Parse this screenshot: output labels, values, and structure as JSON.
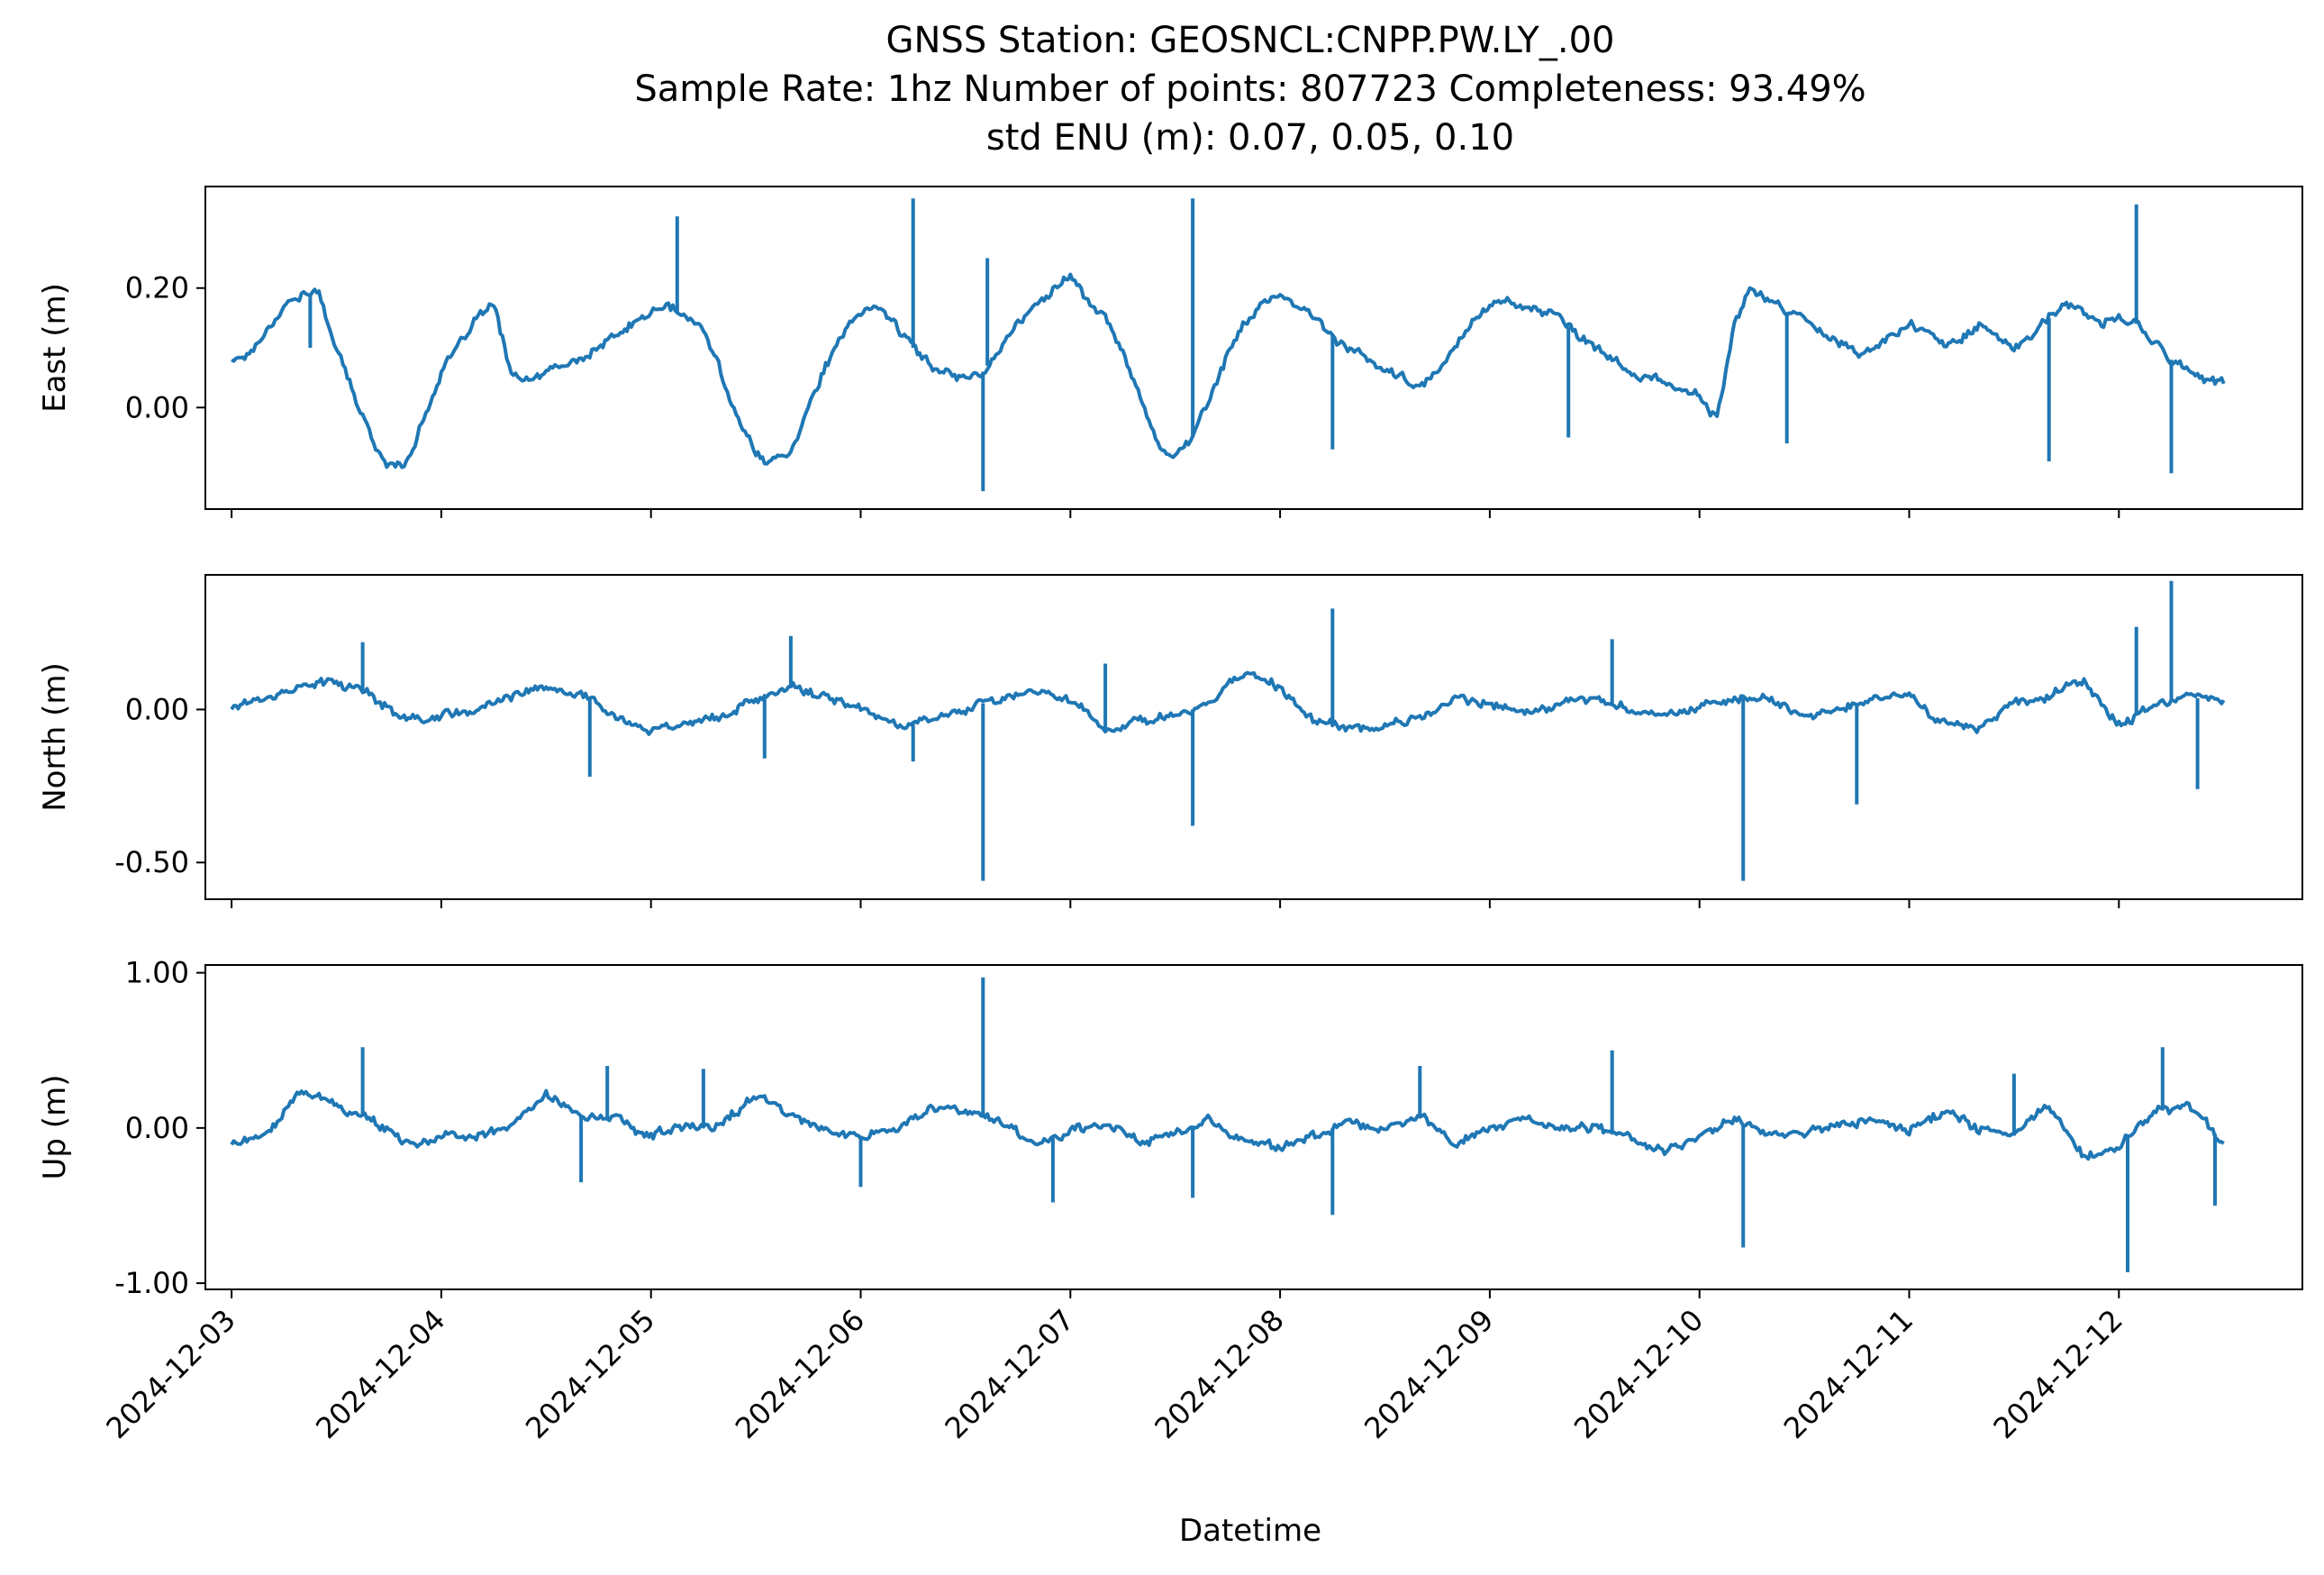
{
  "figure": {
    "title_lines": [
      "GNSS Station: GEOSNCL:CNPP.PW.LY_.00",
      "Sample Rate: 1hz   Number of points: 807723    Completeness:  93.49%",
      "std ENU (m):  0.07, 0.05, 0.10"
    ],
    "xlabel": "Datetime",
    "line_color": "#1f77b4"
  },
  "chart_data": [
    {
      "type": "line",
      "ylabel": "East (m)",
      "ylim": [
        -0.17,
        0.37
      ],
      "ytick_values": [
        0.0,
        0.2
      ],
      "ytick_labels": [
        "0.00",
        "0.20"
      ],
      "xlim": [
        "2024-12-02 21:00",
        "2024-12-12 21:00"
      ],
      "xtick_labels": [
        "2024-12-03",
        "2024-12-04",
        "2024-12-05",
        "2024-12-06",
        "2024-12-07",
        "2024-12-08",
        "2024-12-09",
        "2024-12-10",
        "2024-12-11",
        "2024-12-12"
      ],
      "show_xtick_labels": false,
      "series": [
        {
          "x": [
            "2024-12-03 00:00",
            "2024-12-03 02:00",
            "2024-12-03 04:00",
            "2024-12-03 06:00",
            "2024-12-03 08:00",
            "2024-12-03 10:00",
            "2024-12-03 12:00",
            "2024-12-03 14:00",
            "2024-12-03 16:00",
            "2024-12-03 18:00",
            "2024-12-03 20:00",
            "2024-12-03 22:00",
            "2024-12-04 00:00",
            "2024-12-04 02:00",
            "2024-12-04 04:00",
            "2024-12-04 06:00",
            "2024-12-04 08:00",
            "2024-12-04 10:00",
            "2024-12-04 12:00",
            "2024-12-04 14:00",
            "2024-12-04 16:00",
            "2024-12-04 18:00",
            "2024-12-04 20:00",
            "2024-12-04 22:00",
            "2024-12-05 00:00",
            "2024-12-05 02:00",
            "2024-12-05 04:00",
            "2024-12-05 06:00",
            "2024-12-05 08:00",
            "2024-12-05 10:00",
            "2024-12-05 12:00",
            "2024-12-05 14:00",
            "2024-12-05 16:00",
            "2024-12-05 18:00",
            "2024-12-05 20:00",
            "2024-12-05 22:00",
            "2024-12-06 00:00",
            "2024-12-06 02:00",
            "2024-12-06 04:00",
            "2024-12-06 06:00",
            "2024-12-06 08:00",
            "2024-12-06 10:00",
            "2024-12-06 12:00",
            "2024-12-06 14:00",
            "2024-12-06 16:00",
            "2024-12-06 18:00",
            "2024-12-06 20:00",
            "2024-12-06 22:00",
            "2024-12-07 00:00",
            "2024-12-07 02:00",
            "2024-12-07 04:00",
            "2024-12-07 06:00",
            "2024-12-07 08:00",
            "2024-12-07 10:00",
            "2024-12-07 12:00",
            "2024-12-07 14:00",
            "2024-12-07 16:00",
            "2024-12-07 18:00",
            "2024-12-07 20:00",
            "2024-12-07 22:00",
            "2024-12-08 00:00",
            "2024-12-08 02:00",
            "2024-12-08 04:00",
            "2024-12-08 06:00",
            "2024-12-08 08:00",
            "2024-12-08 10:00",
            "2024-12-08 12:00",
            "2024-12-08 14:00",
            "2024-12-08 16:00",
            "2024-12-08 18:00",
            "2024-12-08 20:00",
            "2024-12-08 22:00",
            "2024-12-09 00:00",
            "2024-12-09 02:00",
            "2024-12-09 04:00",
            "2024-12-09 06:00",
            "2024-12-09 08:00",
            "2024-12-09 10:00",
            "2024-12-09 12:00",
            "2024-12-09 14:00",
            "2024-12-09 16:00",
            "2024-12-09 18:00",
            "2024-12-09 20:00",
            "2024-12-09 22:00",
            "2024-12-10 00:00",
            "2024-12-10 02:00",
            "2024-12-10 04:00",
            "2024-12-10 06:00",
            "2024-12-10 08:00",
            "2024-12-10 10:00",
            "2024-12-10 12:00",
            "2024-12-10 14:00",
            "2024-12-10 16:00",
            "2024-12-10 18:00",
            "2024-12-10 20:00",
            "2024-12-10 22:00",
            "2024-12-11 00:00",
            "2024-12-11 02:00",
            "2024-12-11 04:00",
            "2024-12-11 06:00",
            "2024-12-11 08:00",
            "2024-12-11 10:00",
            "2024-12-11 12:00",
            "2024-12-11 14:00",
            "2024-12-11 16:00",
            "2024-12-11 18:00",
            "2024-12-11 20:00",
            "2024-12-11 22:00",
            "2024-12-12 00:00",
            "2024-12-12 02:00",
            "2024-12-12 04:00",
            "2024-12-12 06:00",
            "2024-12-12 08:00",
            "2024-12-12 10:00",
            "2024-12-12 12:00"
          ],
          "y": [
            0.08,
            0.09,
            0.13,
            0.17,
            0.19,
            0.19,
            0.1,
            0.02,
            -0.05,
            -0.1,
            -0.09,
            -0.02,
            0.06,
            0.1,
            0.15,
            0.17,
            0.06,
            0.04,
            0.06,
            0.07,
            0.08,
            0.1,
            0.12,
            0.14,
            0.16,
            0.17,
            0.15,
            0.13,
            0.06,
            -0.02,
            -0.08,
            -0.09,
            -0.07,
            0.0,
            0.07,
            0.12,
            0.16,
            0.17,
            0.14,
            0.1,
            0.07,
            0.06,
            0.05,
            0.06,
            0.1,
            0.14,
            0.17,
            0.2,
            0.22,
            0.18,
            0.15,
            0.09,
            0.02,
            -0.06,
            -0.08,
            -0.05,
            0.02,
            0.09,
            0.14,
            0.18,
            0.18,
            0.17,
            0.15,
            0.12,
            0.1,
            0.08,
            0.06,
            0.05,
            0.03,
            0.06,
            0.1,
            0.15,
            0.17,
            0.18,
            0.17,
            0.16,
            0.15,
            0.12,
            0.1,
            0.08,
            0.06,
            0.05,
            0.04,
            0.03,
            0.02,
            -0.02,
            0.14,
            0.2,
            0.18,
            0.16,
            0.15,
            0.13,
            0.11,
            0.09,
            0.1,
            0.12,
            0.14,
            0.13,
            0.1,
            0.12,
            0.14,
            0.12,
            0.1,
            0.12,
            0.15,
            0.17,
            0.16,
            0.14,
            0.15,
            0.14,
            0.11,
            0.08,
            0.06,
            0.05,
            0.04
          ],
          "spikes": [
            {
              "x": "2024-12-03 09:00",
              "y": 0.1
            },
            {
              "x": "2024-12-05 03:00",
              "y": 0.32
            },
            {
              "x": "2024-12-06 06:00",
              "y": 0.35
            },
            {
              "x": "2024-12-06 14:00",
              "y": -0.14
            },
            {
              "x": "2024-12-06 14:30",
              "y": 0.25
            },
            {
              "x": "2024-12-07 14:00",
              "y": 0.35
            },
            {
              "x": "2024-12-08 06:00",
              "y": -0.07
            },
            {
              "x": "2024-12-09 09:00",
              "y": -0.05
            },
            {
              "x": "2024-12-10 10:00",
              "y": -0.06
            },
            {
              "x": "2024-12-11 16:00",
              "y": -0.09
            },
            {
              "x": "2024-12-12 02:00",
              "y": 0.34
            },
            {
              "x": "2024-12-12 06:00",
              "y": -0.11
            }
          ]
        }
      ]
    },
    {
      "type": "line",
      "ylabel": "North (m)",
      "ylim": [
        -0.62,
        0.44
      ],
      "ytick_values": [
        0.0,
        -0.5
      ],
      "ytick_labels": [
        "0.00",
        "-0.50"
      ],
      "xlim": [
        "2024-12-02 21:00",
        "2024-12-12 21:00"
      ],
      "xtick_labels": [
        "2024-12-03",
        "2024-12-04",
        "2024-12-05",
        "2024-12-06",
        "2024-12-07",
        "2024-12-08",
        "2024-12-09",
        "2024-12-10",
        "2024-12-11",
        "2024-12-12"
      ],
      "show_xtick_labels": false,
      "series": [
        {
          "x": [
            "2024-12-03 00:00",
            "2024-12-03 04:00",
            "2024-12-03 08:00",
            "2024-12-03 12:00",
            "2024-12-03 16:00",
            "2024-12-03 20:00",
            "2024-12-04 00:00",
            "2024-12-04 04:00",
            "2024-12-04 08:00",
            "2024-12-04 12:00",
            "2024-12-04 16:00",
            "2024-12-04 20:00",
            "2024-12-05 00:00",
            "2024-12-05 04:00",
            "2024-12-05 08:00",
            "2024-12-05 12:00",
            "2024-12-05 16:00",
            "2024-12-05 20:00",
            "2024-12-06 00:00",
            "2024-12-06 04:00",
            "2024-12-06 08:00",
            "2024-12-06 12:00",
            "2024-12-06 16:00",
            "2024-12-06 20:00",
            "2024-12-07 00:00",
            "2024-12-07 04:00",
            "2024-12-07 08:00",
            "2024-12-07 12:00",
            "2024-12-07 16:00",
            "2024-12-07 20:00",
            "2024-12-08 00:00",
            "2024-12-08 04:00",
            "2024-12-08 08:00",
            "2024-12-08 12:00",
            "2024-12-08 16:00",
            "2024-12-08 20:00",
            "2024-12-09 00:00",
            "2024-12-09 04:00",
            "2024-12-09 08:00",
            "2024-12-09 12:00",
            "2024-12-09 16:00",
            "2024-12-09 20:00",
            "2024-12-10 00:00",
            "2024-12-10 04:00",
            "2024-12-10 08:00",
            "2024-12-10 12:00",
            "2024-12-10 16:00",
            "2024-12-10 20:00",
            "2024-12-11 00:00",
            "2024-12-11 04:00",
            "2024-12-11 08:00",
            "2024-12-11 12:00",
            "2024-12-11 16:00",
            "2024-12-11 20:00",
            "2024-12-12 00:00",
            "2024-12-12 04:00",
            "2024-12-12 08:00",
            "2024-12-12 12:00"
          ],
          "y": [
            0.01,
            0.04,
            0.08,
            0.09,
            0.05,
            -0.04,
            -0.02,
            0.0,
            0.04,
            0.07,
            0.05,
            -0.02,
            -0.06,
            -0.05,
            -0.02,
            0.03,
            0.07,
            0.04,
            0.0,
            -0.05,
            -0.03,
            0.0,
            0.04,
            0.06,
            0.04,
            -0.07,
            -0.03,
            -0.02,
            0.02,
            0.12,
            0.07,
            -0.04,
            -0.06,
            -0.05,
            -0.03,
            0.03,
            0.02,
            -0.01,
            0.02,
            0.04,
            0.0,
            -0.03,
            0.02,
            0.04,
            0.03,
            -0.02,
            0.0,
            0.03,
            0.05,
            -0.05,
            -0.06,
            0.02,
            0.05,
            0.09,
            -0.05,
            0.01,
            0.04,
            0.03
          ],
          "spikes": [
            {
              "x": "2024-12-03 15:00",
              "y": 0.22
            },
            {
              "x": "2024-12-04 17:00",
              "y": -0.22
            },
            {
              "x": "2024-12-05 13:00",
              "y": -0.16
            },
            {
              "x": "2024-12-05 16:00",
              "y": 0.24
            },
            {
              "x": "2024-12-06 06:00",
              "y": -0.17
            },
            {
              "x": "2024-12-06 14:00",
              "y": -0.56
            },
            {
              "x": "2024-12-07 04:00",
              "y": 0.15
            },
            {
              "x": "2024-12-07 14:00",
              "y": -0.38
            },
            {
              "x": "2024-12-08 06:00",
              "y": 0.33
            },
            {
              "x": "2024-12-09 14:00",
              "y": 0.23
            },
            {
              "x": "2024-12-10 05:00",
              "y": -0.56
            },
            {
              "x": "2024-12-10 18:00",
              "y": -0.31
            },
            {
              "x": "2024-12-12 02:00",
              "y": 0.27
            },
            {
              "x": "2024-12-12 06:00",
              "y": 0.42
            },
            {
              "x": "2024-12-12 09:00",
              "y": -0.26
            }
          ]
        }
      ]
    },
    {
      "type": "line",
      "ylabel": "Up (m)",
      "ylim": [
        -1.04,
        1.05
      ],
      "ytick_values": [
        1.0,
        0.0,
        -1.0
      ],
      "ytick_labels": [
        "1.00",
        "0.00",
        "-1.00"
      ],
      "xlim": [
        "2024-12-02 21:00",
        "2024-12-12 21:00"
      ],
      "xtick_labels": [
        "2024-12-03",
        "2024-12-04",
        "2024-12-05",
        "2024-12-06",
        "2024-12-07",
        "2024-12-08",
        "2024-12-09",
        "2024-12-10",
        "2024-12-11",
        "2024-12-12"
      ],
      "show_xtick_labels": true,
      "series": [
        {
          "x": [
            "2024-12-03 00:00",
            "2024-12-03 04:00",
            "2024-12-03 08:00",
            "2024-12-03 12:00",
            "2024-12-03 16:00",
            "2024-12-03 20:00",
            "2024-12-04 00:00",
            "2024-12-04 04:00",
            "2024-12-04 08:00",
            "2024-12-04 12:00",
            "2024-12-04 16:00",
            "2024-12-04 20:00",
            "2024-12-05 00:00",
            "2024-12-05 04:00",
            "2024-12-05 08:00",
            "2024-12-05 12:00",
            "2024-12-05 16:00",
            "2024-12-05 20:00",
            "2024-12-06 00:00",
            "2024-12-06 04:00",
            "2024-12-06 08:00",
            "2024-12-06 12:00",
            "2024-12-06 16:00",
            "2024-12-06 20:00",
            "2024-12-07 00:00",
            "2024-12-07 04:00",
            "2024-12-07 08:00",
            "2024-12-07 12:00",
            "2024-12-07 16:00",
            "2024-12-07 20:00",
            "2024-12-08 00:00",
            "2024-12-08 04:00",
            "2024-12-08 08:00",
            "2024-12-08 12:00",
            "2024-12-08 16:00",
            "2024-12-08 20:00",
            "2024-12-09 00:00",
            "2024-12-09 04:00",
            "2024-12-09 08:00",
            "2024-12-09 12:00",
            "2024-12-09 16:00",
            "2024-12-09 20:00",
            "2024-12-10 00:00",
            "2024-12-10 04:00",
            "2024-12-10 08:00",
            "2024-12-10 12:00",
            "2024-12-10 16:00",
            "2024-12-10 20:00",
            "2024-12-11 00:00",
            "2024-12-11 04:00",
            "2024-12-11 08:00",
            "2024-12-11 12:00",
            "2024-12-11 16:00",
            "2024-12-11 20:00",
            "2024-12-12 00:00",
            "2024-12-12 04:00",
            "2024-12-12 08:00",
            "2024-12-12 12:00"
          ],
          "y": [
            -0.1,
            -0.05,
            0.25,
            0.15,
            0.05,
            -0.1,
            -0.08,
            -0.03,
            0.02,
            0.2,
            0.08,
            0.05,
            -0.05,
            0.0,
            0.02,
            0.2,
            0.1,
            -0.02,
            -0.05,
            -0.03,
            0.15,
            0.08,
            0.05,
            -0.1,
            -0.02,
            0.03,
            -0.08,
            -0.02,
            0.05,
            -0.1,
            -0.12,
            -0.05,
            0.05,
            0.0,
            0.08,
            -0.1,
            0.0,
            0.05,
            -0.02,
            0.0,
            -0.05,
            -0.15,
            -0.05,
            0.05,
            -0.05,
            -0.02,
            0.02,
            0.05,
            0.0,
            0.1,
            0.0,
            -0.05,
            0.15,
            -0.2,
            -0.1,
            0.1,
            0.15,
            -0.1
          ],
          "spikes": [
            {
              "x": "2024-12-03 15:00",
              "y": 0.52
            },
            {
              "x": "2024-12-04 16:00",
              "y": -0.35
            },
            {
              "x": "2024-12-04 19:00",
              "y": 0.4
            },
            {
              "x": "2024-12-05 06:00",
              "y": 0.38
            },
            {
              "x": "2024-12-06 00:00",
              "y": -0.38
            },
            {
              "x": "2024-12-06 14:00",
              "y": 0.97
            },
            {
              "x": "2024-12-06 22:00",
              "y": -0.48
            },
            {
              "x": "2024-12-07 14:00",
              "y": -0.45
            },
            {
              "x": "2024-12-08 06:00",
              "y": -0.56
            },
            {
              "x": "2024-12-08 16:00",
              "y": 0.4
            },
            {
              "x": "2024-12-09 14:00",
              "y": 0.5
            },
            {
              "x": "2024-12-10 05:00",
              "y": -0.77
            },
            {
              "x": "2024-12-11 12:00",
              "y": 0.35
            },
            {
              "x": "2024-12-12 01:00",
              "y": -0.93
            },
            {
              "x": "2024-12-12 05:00",
              "y": 0.52
            },
            {
              "x": "2024-12-12 11:00",
              "y": -0.5
            }
          ]
        }
      ]
    }
  ]
}
